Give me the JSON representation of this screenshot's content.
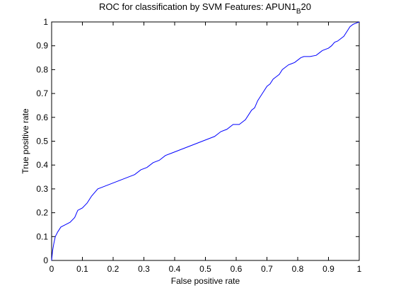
{
  "chart_data": {
    "type": "line",
    "title": "ROC for classification by SVM Features: APUN1",
    "title_subscript": "B",
    "title_suffix": "20",
    "xlabel": "False positive rate",
    "ylabel": "True positive rate",
    "xlim": [
      0,
      1
    ],
    "ylim": [
      0,
      1
    ],
    "xticks": [
      "0",
      "0.1",
      "0.2",
      "0.3",
      "0.4",
      "0.5",
      "0.6",
      "0.7",
      "0.8",
      "0.9",
      "1"
    ],
    "yticks": [
      "0",
      "0.1",
      "0.2",
      "0.3",
      "0.4",
      "0.5",
      "0.6",
      "0.7",
      "0.8",
      "0.9",
      "1"
    ],
    "grid": false,
    "line_color": "#0000ff",
    "series": [
      {
        "x": [
          0.0,
          0.003,
          0.007,
          0.012,
          0.02,
          0.03,
          0.045,
          0.06,
          0.075,
          0.085,
          0.1,
          0.115,
          0.13,
          0.15,
          0.17,
          0.19,
          0.21,
          0.23,
          0.25,
          0.27,
          0.29,
          0.31,
          0.33,
          0.35,
          0.37,
          0.39,
          0.41,
          0.43,
          0.45,
          0.47,
          0.49,
          0.51,
          0.53,
          0.55,
          0.57,
          0.59,
          0.61,
          0.62,
          0.63,
          0.64,
          0.65,
          0.66,
          0.67,
          0.68,
          0.69,
          0.7,
          0.71,
          0.72,
          0.73,
          0.74,
          0.75,
          0.76,
          0.77,
          0.78,
          0.79,
          0.8,
          0.81,
          0.82,
          0.84,
          0.86,
          0.87,
          0.88,
          0.9,
          0.91,
          0.92,
          0.93,
          0.94,
          0.95,
          0.96,
          0.965,
          0.97,
          0.98,
          0.99,
          1.0
        ],
        "y": [
          0.0,
          0.04,
          0.07,
          0.1,
          0.12,
          0.14,
          0.15,
          0.16,
          0.18,
          0.21,
          0.22,
          0.24,
          0.27,
          0.3,
          0.31,
          0.32,
          0.33,
          0.34,
          0.35,
          0.36,
          0.38,
          0.39,
          0.41,
          0.42,
          0.44,
          0.45,
          0.46,
          0.47,
          0.48,
          0.49,
          0.5,
          0.51,
          0.52,
          0.54,
          0.55,
          0.57,
          0.57,
          0.58,
          0.59,
          0.61,
          0.63,
          0.64,
          0.67,
          0.69,
          0.71,
          0.73,
          0.74,
          0.76,
          0.77,
          0.78,
          0.8,
          0.81,
          0.82,
          0.825,
          0.83,
          0.84,
          0.85,
          0.855,
          0.855,
          0.86,
          0.87,
          0.88,
          0.89,
          0.9,
          0.915,
          0.92,
          0.93,
          0.94,
          0.96,
          0.97,
          0.98,
          0.99,
          0.995,
          1.0
        ]
      }
    ]
  }
}
